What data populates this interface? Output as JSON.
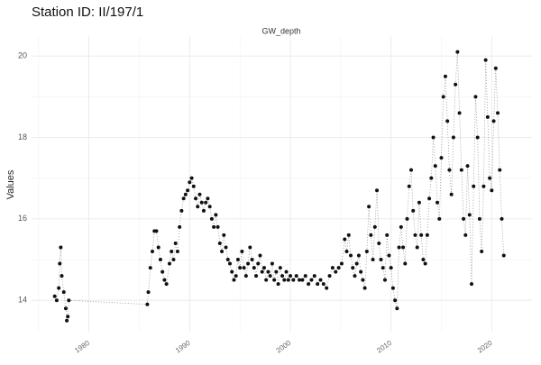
{
  "chart_data": {
    "type": "scatter",
    "title": "Station ID: II/197/1",
    "panel_label": "GW_depth",
    "ylabel": "Values",
    "xlim": [
      1974.3,
      2024.0
    ],
    "ylim": [
      13.23,
      20.49
    ],
    "xticks": [
      1980,
      1990,
      2000,
      2010,
      2020
    ],
    "yticks": [
      14,
      16,
      18,
      20
    ],
    "xminor": [
      1975,
      1985,
      1995,
      2005,
      2015
    ],
    "yminor": [
      15,
      17,
      19
    ],
    "grid": true,
    "connect": "dotted",
    "series": [
      {
        "name": "GW_depth",
        "color": "#111111",
        "x": [
          1976.6,
          1976.8,
          1977.0,
          1977.1,
          1977.2,
          1977.3,
          1977.5,
          1977.7,
          1977.8,
          1977.9,
          1978.0,
          1985.8,
          1985.9,
          1986.1,
          1986.3,
          1986.5,
          1986.7,
          1986.9,
          1987.1,
          1987.3,
          1987.5,
          1987.7,
          1988.0,
          1988.2,
          1988.4,
          1988.6,
          1988.8,
          1989.0,
          1989.2,
          1989.4,
          1989.6,
          1989.8,
          1990.0,
          1990.2,
          1990.4,
          1990.6,
          1990.8,
          1991.0,
          1991.2,
          1991.4,
          1991.6,
          1991.8,
          1992.0,
          1992.2,
          1992.4,
          1992.6,
          1992.8,
          1993.0,
          1993.2,
          1993.4,
          1993.6,
          1993.8,
          1994.0,
          1994.2,
          1994.4,
          1994.6,
          1994.8,
          1995.0,
          1995.2,
          1995.4,
          1995.6,
          1995.8,
          1996.0,
          1996.2,
          1996.4,
          1996.6,
          1996.8,
          1997.0,
          1997.2,
          1997.4,
          1997.6,
          1997.8,
          1998.0,
          1998.2,
          1998.4,
          1998.6,
          1998.8,
          1999.0,
          1999.2,
          1999.4,
          1999.6,
          1999.8,
          2000.0,
          2000.3,
          2000.6,
          2000.9,
          2001.2,
          2001.5,
          2001.8,
          2002.1,
          2002.4,
          2002.7,
          2003.0,
          2003.3,
          2003.6,
          2003.9,
          2004.2,
          2004.5,
          2004.8,
          2005.1,
          2005.4,
          2005.6,
          2005.8,
          2006.0,
          2006.2,
          2006.4,
          2006.6,
          2006.8,
          2007.0,
          2007.2,
          2007.4,
          2007.6,
          2007.8,
          2008.0,
          2008.2,
          2008.4,
          2008.6,
          2008.8,
          2009.0,
          2009.2,
          2009.4,
          2009.6,
          2009.8,
          2010.0,
          2010.2,
          2010.4,
          2010.6,
          2010.8,
          2011.0,
          2011.2,
          2011.4,
          2011.6,
          2011.8,
          2012.0,
          2012.2,
          2012.4,
          2012.6,
          2012.8,
          2013.0,
          2013.2,
          2013.4,
          2013.6,
          2013.8,
          2014.0,
          2014.2,
          2014.4,
          2014.6,
          2014.8,
          2015.0,
          2015.2,
          2015.4,
          2015.6,
          2015.8,
          2016.0,
          2016.2,
          2016.4,
          2016.6,
          2016.8,
          2017.0,
          2017.2,
          2017.4,
          2017.6,
          2017.8,
          2018.0,
          2018.2,
          2018.4,
          2018.6,
          2018.8,
          2019.0,
          2019.2,
          2019.4,
          2019.6,
          2019.8,
          2020.0,
          2020.2,
          2020.4,
          2020.6,
          2020.8,
          2021.0,
          2021.2
        ],
        "values": [
          14.1,
          14.0,
          14.3,
          14.9,
          15.3,
          14.6,
          14.2,
          13.8,
          13.5,
          13.6,
          14.0,
          13.9,
          14.2,
          14.8,
          15.2,
          15.7,
          15.7,
          15.3,
          15.0,
          14.7,
          14.5,
          14.4,
          14.9,
          15.2,
          15.0,
          15.4,
          15.2,
          15.8,
          16.2,
          16.5,
          16.6,
          16.7,
          16.9,
          17.0,
          16.8,
          16.5,
          16.3,
          16.6,
          16.4,
          16.2,
          16.4,
          16.5,
          16.3,
          16.0,
          15.8,
          16.1,
          15.8,
          15.4,
          15.2,
          15.6,
          15.3,
          15.0,
          14.9,
          14.7,
          14.5,
          14.6,
          15.0,
          14.8,
          15.2,
          14.8,
          14.6,
          14.9,
          15.3,
          15.0,
          14.8,
          14.6,
          14.9,
          15.1,
          14.7,
          14.8,
          14.5,
          14.7,
          14.6,
          14.9,
          14.5,
          14.7,
          14.4,
          14.8,
          14.6,
          14.5,
          14.7,
          14.5,
          14.6,
          14.5,
          14.6,
          14.5,
          14.5,
          14.6,
          14.4,
          14.5,
          14.6,
          14.4,
          14.5,
          14.4,
          14.3,
          14.6,
          14.8,
          14.7,
          14.8,
          14.9,
          15.5,
          15.2,
          15.6,
          15.1,
          14.8,
          14.6,
          14.9,
          15.1,
          14.7,
          14.5,
          14.3,
          15.2,
          16.3,
          15.6,
          15.0,
          15.8,
          16.7,
          15.4,
          15.0,
          14.8,
          14.5,
          15.6,
          15.1,
          14.8,
          14.3,
          14.0,
          13.8,
          15.3,
          15.8,
          15.3,
          14.9,
          16.0,
          16.8,
          17.2,
          16.2,
          15.6,
          15.3,
          16.4,
          15.6,
          15.0,
          14.9,
          15.6,
          16.5,
          17.0,
          18.0,
          17.3,
          16.4,
          16.0,
          17.5,
          19.0,
          19.5,
          18.4,
          17.2,
          16.6,
          18.0,
          19.3,
          20.1,
          18.6,
          17.2,
          16.0,
          15.6,
          17.3,
          16.1,
          14.4,
          16.8,
          19.0,
          18.0,
          16.0,
          15.2,
          16.8,
          19.9,
          18.5,
          17.0,
          16.7,
          18.4,
          19.7,
          18.6,
          17.2,
          16.0,
          15.1
        ]
      }
    ]
  }
}
